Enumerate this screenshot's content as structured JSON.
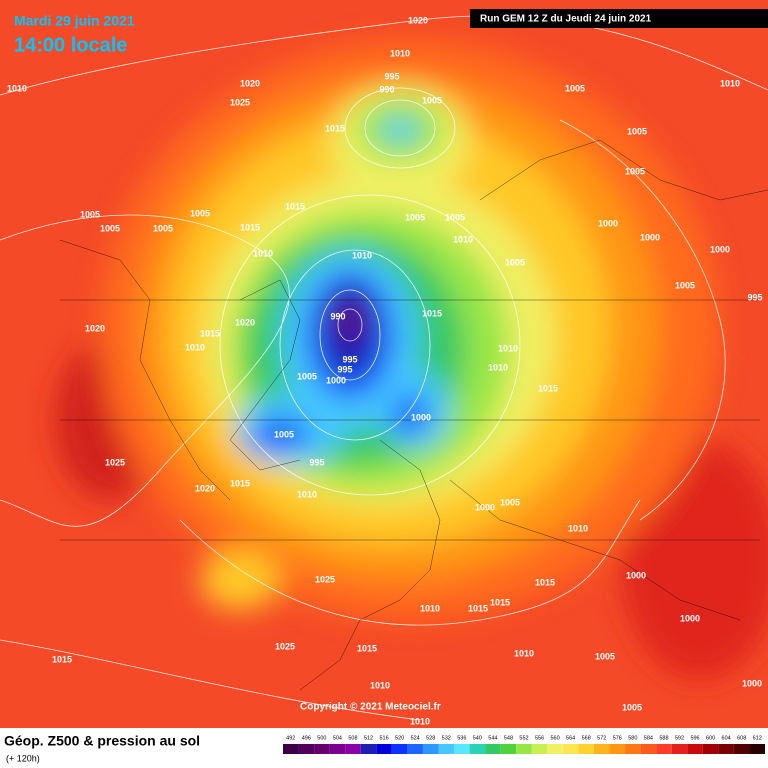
{
  "header": {
    "date": "Mardi 29 juin 2021",
    "time": "14:00 locale",
    "run": "Run GEM 12 Z du Jeudi 24 juin 2021"
  },
  "map": {
    "pressure_labels": [
      "1020",
      "1010",
      "1010",
      "995",
      "990",
      "1005",
      "1020",
      "1025",
      "1005",
      "1010",
      "1015",
      "1005",
      "1005",
      "1015",
      "1005",
      "1005",
      "1005",
      "1005",
      "1005",
      "1005",
      "1010",
      "1015",
      "1010",
      "1010",
      "1000",
      "1000",
      "1000",
      "1005",
      "1005",
      "995",
      "990",
      "1015",
      "1020",
      "1020",
      "1015",
      "1010",
      "995",
      "995",
      "1005",
      "1000",
      "1010",
      "1010",
      "1015",
      "1000",
      "1005",
      "995",
      "1025",
      "1015",
      "1020",
      "1010",
      "1005",
      "1000",
      "1025",
      "1025",
      "1015",
      "1015",
      "1010",
      "1010",
      "1000",
      "1010",
      "1015",
      "1010",
      "1015",
      "1015",
      "1000",
      "1005",
      "1000",
      "1005",
      "1010"
    ]
  },
  "footer": {
    "title": "Géop. Z500 & pression au sol",
    "lead": "(+ 120h)",
    "copyright": "Copyright © 2021 Meteociel.fr"
  },
  "scale": {
    "values": [
      492,
      496,
      500,
      504,
      508,
      512,
      516,
      520,
      524,
      528,
      532,
      536,
      540,
      544,
      548,
      552,
      556,
      560,
      564,
      568,
      572,
      576,
      580,
      584,
      588,
      592,
      596,
      600,
      604,
      608,
      612
    ],
    "colors": [
      "#3c0046",
      "#50005a",
      "#64006e",
      "#78008c",
      "#8c00aa",
      "#1e1eb4",
      "#0000dc",
      "#0a32ff",
      "#1e64ff",
      "#3296ff",
      "#46c8ff",
      "#5ae6ff",
      "#28d2b4",
      "#32c864",
      "#50d23c",
      "#96e646",
      "#c8f050",
      "#f0f064",
      "#ffe650",
      "#ffd232",
      "#ffb41e",
      "#ff9614",
      "#ff7814",
      "#ff5a1e",
      "#ff3c28",
      "#e61e1e",
      "#c80a0a",
      "#a00000",
      "#780000",
      "#500000",
      "#280000"
    ]
  }
}
